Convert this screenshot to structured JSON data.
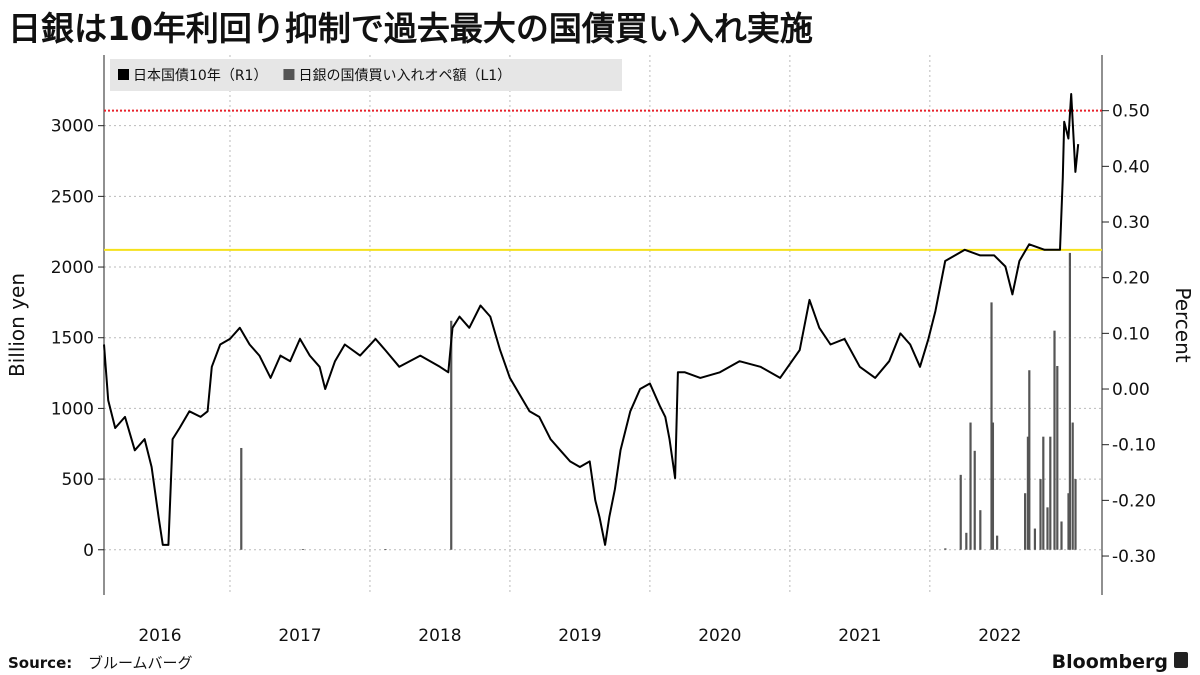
{
  "chart_data": {
    "type": "combo",
    "title": "日銀は10年利回り抑制で過去最大の国債買い入れ実施",
    "y_label": "Billion yen",
    "y2_label": "Percent",
    "source_label": "Source:",
    "source_text": "ブルームバーグ",
    "brand": "Bloomberg",
    "legend": "top-left",
    "grid": true,
    "xlim": [
      2016.1,
      2023.23
    ],
    "xticks": [
      {
        "value": 2016.5,
        "label": "2016"
      },
      {
        "value": 2017.5,
        "label": "2017"
      },
      {
        "value": 2018.5,
        "label": "2018"
      },
      {
        "value": 2019.5,
        "label": "2019"
      },
      {
        "value": 2020.5,
        "label": "2020"
      },
      {
        "value": 2021.5,
        "label": "2021"
      },
      {
        "value": 2022.5,
        "label": "2022"
      }
    ],
    "xgrid": [
      2017,
      2018,
      2019,
      2020,
      2021,
      2022
    ],
    "ylim": [
      -320,
      3500
    ],
    "yticks": [
      0,
      500,
      1000,
      1500,
      2000,
      2500,
      3000
    ],
    "y2lim": [
      -0.37,
      0.6
    ],
    "y2ticks": [
      {
        "value": -0.3,
        "label": "-0.30"
      },
      {
        "value": -0.2,
        "label": "-0.20"
      },
      {
        "value": -0.1,
        "label": "-0.10"
      },
      {
        "value": 0,
        "label": "0.00"
      },
      {
        "value": 0.1,
        "label": "0.10"
      },
      {
        "value": 0.2,
        "label": "0.20"
      },
      {
        "value": 0.3,
        "label": "0.30"
      },
      {
        "value": 0.4,
        "label": "0.40"
      },
      {
        "value": 0.5,
        "label": "0.50"
      }
    ],
    "reference_lines": [
      {
        "value": 0.5,
        "color": "#e8202a",
        "axis": "y2",
        "style": "dotted"
      },
      {
        "value": 0.25,
        "color": "#f5e11b",
        "axis": "y2",
        "style": "solid"
      }
    ],
    "series": [
      {
        "name": "日本国債10年（R1）",
        "type": "line",
        "axis": "y2",
        "color": "#000000",
        "x": [
          2016.1,
          2016.13,
          2016.18,
          2016.25,
          2016.32,
          2016.39,
          2016.44,
          2016.49,
          2016.52,
          2016.56,
          2016.59,
          2016.64,
          2016.71,
          2016.79,
          2016.84,
          2016.87,
          2016.93,
          2017.0,
          2017.07,
          2017.14,
          2017.21,
          2017.29,
          2017.36,
          2017.43,
          2017.5,
          2017.57,
          2017.64,
          2017.68,
          2017.75,
          2017.82,
          2017.93,
          2018.04,
          2018.11,
          2018.21,
          2018.36,
          2018.5,
          2018.56,
          2018.59,
          2018.64,
          2018.71,
          2018.79,
          2018.86,
          2018.93,
          2019.0,
          2019.07,
          2019.14,
          2019.21,
          2019.29,
          2019.36,
          2019.43,
          2019.5,
          2019.57,
          2019.61,
          2019.64,
          2019.68,
          2019.71,
          2019.75,
          2019.79,
          2019.86,
          2019.93,
          2020.0,
          2020.07,
          2020.11,
          2020.14,
          2020.18,
          2020.2,
          2020.25,
          2020.36,
          2020.5,
          2020.64,
          2020.79,
          2020.93,
          2021.07,
          2021.14,
          2021.21,
          2021.29,
          2021.39,
          2021.5,
          2021.61,
          2021.71,
          2021.79,
          2021.86,
          2021.93,
          2021.99,
          2022.04,
          2022.11,
          2022.18,
          2022.25,
          2022.36,
          2022.46,
          2022.54,
          2022.59,
          2022.64,
          2022.71,
          2022.82,
          2022.93,
          2022.95,
          2022.96,
          2022.99,
          2023.01,
          2023.04,
          2023.06
        ],
        "values": [
          0.08,
          -0.02,
          -0.07,
          -0.05,
          -0.11,
          -0.09,
          -0.14,
          -0.23,
          -0.28,
          -0.28,
          -0.09,
          -0.07,
          -0.04,
          -0.05,
          -0.04,
          0.04,
          0.08,
          0.09,
          0.11,
          0.08,
          0.06,
          0.02,
          0.06,
          0.05,
          0.09,
          0.06,
          0.04,
          0.0,
          0.05,
          0.08,
          0.06,
          0.09,
          0.07,
          0.04,
          0.06,
          0.04,
          0.03,
          0.11,
          0.13,
          0.11,
          0.15,
          0.13,
          0.07,
          0.02,
          -0.01,
          -0.04,
          -0.05,
          -0.09,
          -0.11,
          -0.13,
          -0.14,
          -0.13,
          -0.2,
          -0.23,
          -0.28,
          -0.23,
          -0.18,
          -0.11,
          -0.04,
          0.0,
          0.01,
          -0.03,
          -0.05,
          -0.09,
          -0.16,
          0.03,
          0.03,
          0.02,
          0.03,
          0.05,
          0.04,
          0.02,
          0.07,
          0.16,
          0.11,
          0.08,
          0.09,
          0.04,
          0.02,
          0.05,
          0.1,
          0.08,
          0.04,
          0.09,
          0.14,
          0.23,
          0.24,
          0.25,
          0.24,
          0.24,
          0.22,
          0.17,
          0.23,
          0.26,
          0.25,
          0.25,
          0.38,
          0.48,
          0.45,
          0.53,
          0.39,
          0.44
        ]
      },
      {
        "name": "日銀の国債買い入れオペ額（L1）",
        "type": "bar",
        "axis": "y",
        "color": "#555555",
        "x": [
          2017.08,
          2017.52,
          2018.11,
          2018.58,
          2022.11,
          2022.22,
          2022.26,
          2022.29,
          2022.32,
          2022.36,
          2022.44,
          2022.45,
          2022.48,
          2022.68,
          2022.7,
          2022.71,
          2022.75,
          2022.79,
          2022.81,
          2022.84,
          2022.86,
          2022.89,
          2022.91,
          2022.94,
          2022.99,
          2023.0,
          2023.02,
          2023.04
        ],
        "values": [
          720,
          5,
          5,
          1620,
          10,
          530,
          120,
          900,
          700,
          280,
          1750,
          900,
          100,
          400,
          800,
          1270,
          150,
          500,
          800,
          300,
          800,
          1550,
          1300,
          200,
          400,
          2100,
          900,
          500
        ]
      }
    ]
  }
}
